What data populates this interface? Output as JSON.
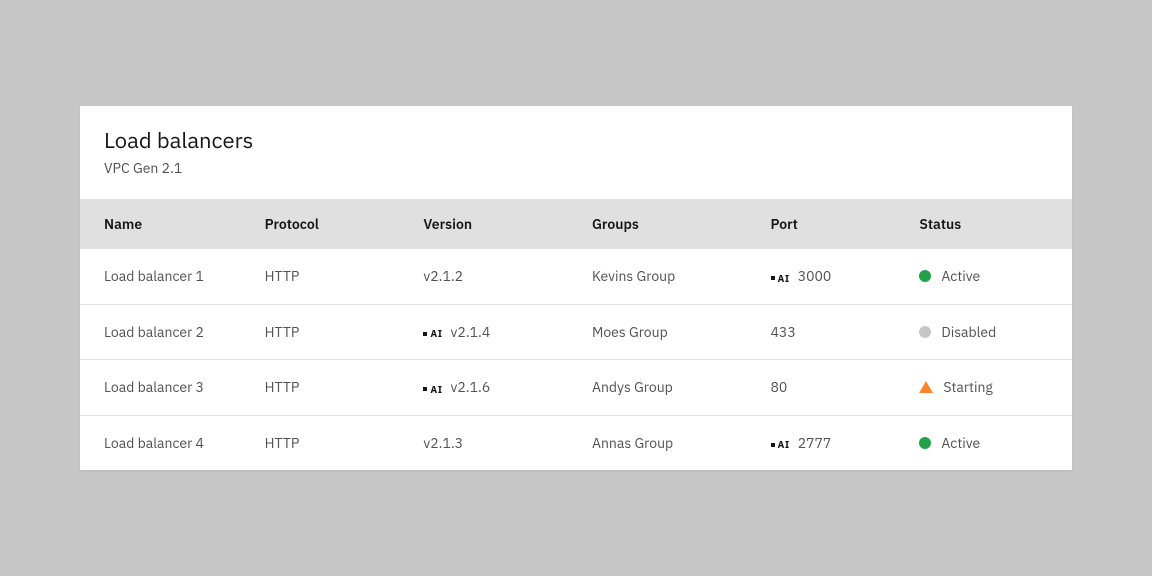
{
  "colors": {
    "page_bg": "#c6c6c6",
    "panel_bg": "#ffffff",
    "header_bg": "#e0e0e0",
    "row_border": "#e0e0e0",
    "text_primary": "#161616",
    "text_secondary": "#525252",
    "status_active": "#24a148",
    "status_disabled": "#c6c6c6",
    "status_starting": "#ff832b"
  },
  "header": {
    "title": "Load balancers",
    "subtitle": "VPC Gen 2.1"
  },
  "table": {
    "columns": [
      "Name",
      "Protocol",
      "Version",
      "Groups",
      "Port",
      "Status"
    ],
    "ai_tag_label": "AI",
    "rows": [
      {
        "name": "Load balancer 1",
        "protocol": "HTTP",
        "version": "v2.1.2",
        "version_ai": false,
        "group": "Kevins Group",
        "port": "3000",
        "port_ai": true,
        "status": {
          "label": "Active",
          "shape": "dot",
          "color": "#24a148"
        }
      },
      {
        "name": "Load balancer 2",
        "protocol": "HTTP",
        "version": "v2.1.4",
        "version_ai": true,
        "group": "Moes Group",
        "port": "433",
        "port_ai": false,
        "status": {
          "label": "Disabled",
          "shape": "dot",
          "color": "#c6c6c6"
        }
      },
      {
        "name": "Load balancer 3",
        "protocol": "HTTP",
        "version": "v2.1.6",
        "version_ai": true,
        "group": "Andys Group",
        "port": "80",
        "port_ai": false,
        "status": {
          "label": "Starting",
          "shape": "triangle",
          "color": "#ff832b"
        }
      },
      {
        "name": "Load balancer 4",
        "protocol": "HTTP",
        "version": "v2.1.3",
        "version_ai": false,
        "group": "Annas Group",
        "port": "2777",
        "port_ai": true,
        "status": {
          "label": "Active",
          "shape": "dot",
          "color": "#24a148"
        }
      }
    ]
  }
}
